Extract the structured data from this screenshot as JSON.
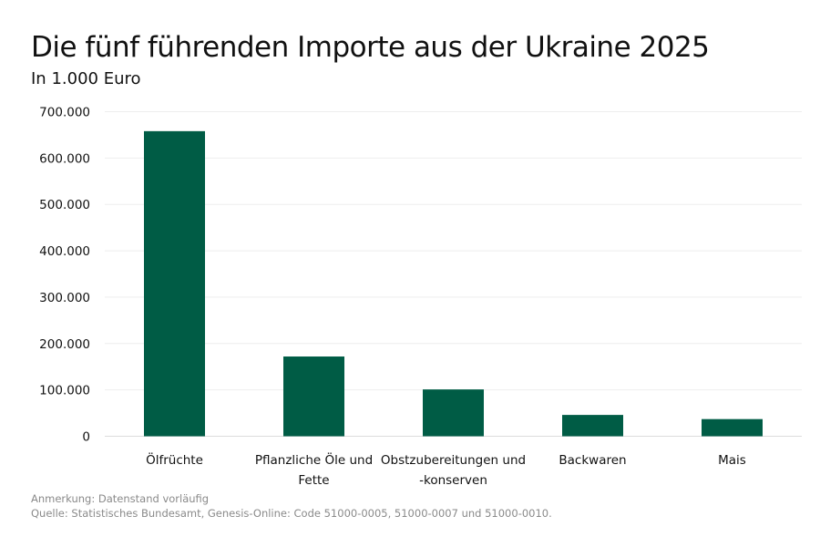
{
  "title": "Die fünf führenden Importe aus der Ukraine 2025",
  "subtitle": "In 1.000 Euro",
  "notes": [
    "Anmerkung: Datenstand vorläufig",
    "Quelle: Statistisches Bundesamt, Genesis-Online: Code 51000-0005, 51000-0007 und 51000-0010."
  ],
  "chart_data": {
    "type": "bar",
    "title": "Die fünf führenden Importe aus der Ukraine 2025",
    "subtitle": "In 1.000 Euro",
    "categories": [
      [
        "Ölfrüchte"
      ],
      [
        "Pflanzliche Öle und",
        "Fette"
      ],
      [
        "Obstzubereitungen und",
        "-konserven"
      ],
      [
        "Backwaren"
      ],
      [
        "Mais"
      ]
    ],
    "values": [
      658000,
      172000,
      101000,
      46000,
      37000
    ],
    "ylim": [
      0,
      700000
    ],
    "yticks": [
      0,
      100000,
      200000,
      300000,
      400000,
      500000,
      600000,
      700000
    ],
    "ytick_labels": [
      "0",
      "100.000",
      "200.000",
      "300.000",
      "400.000",
      "500.000",
      "600.000",
      "700.000"
    ],
    "grid": true,
    "color": "#005c45"
  }
}
